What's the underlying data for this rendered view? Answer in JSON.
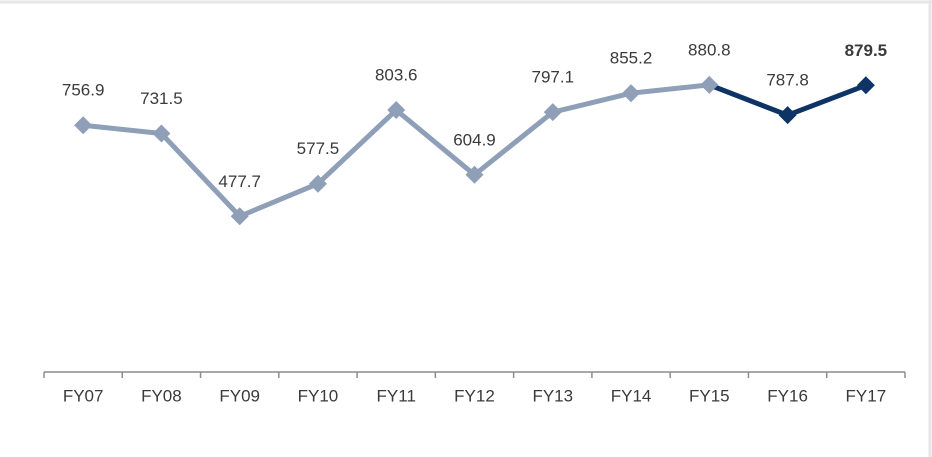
{
  "chart_data": {
    "type": "line",
    "categories": [
      "FY07",
      "FY08",
      "FY09",
      "FY10",
      "FY11",
      "FY12",
      "FY13",
      "FY14",
      "FY15",
      "FY16",
      "FY17"
    ],
    "series": [
      {
        "color": "#8f9fb8",
        "values": [
          756.9,
          731.5,
          477.7,
          577.5,
          803.6,
          604.9,
          797.1,
          855.2,
          880.8,
          787.8,
          879.5
        ],
        "point_colors": [
          "#8f9fb8",
          "#8f9fb8",
          "#8f9fb8",
          "#8f9fb8",
          "#8f9fb8",
          "#8f9fb8",
          "#8f9fb8",
          "#8f9fb8",
          "#8f9fb8",
          "#0d3465",
          "#0d3465"
        ],
        "label_weights": [
          "normal",
          "normal",
          "normal",
          "normal",
          "normal",
          "normal",
          "normal",
          "normal",
          "normal",
          "normal",
          "bold"
        ]
      }
    ],
    "ylim": [
      0,
      1000
    ]
  }
}
